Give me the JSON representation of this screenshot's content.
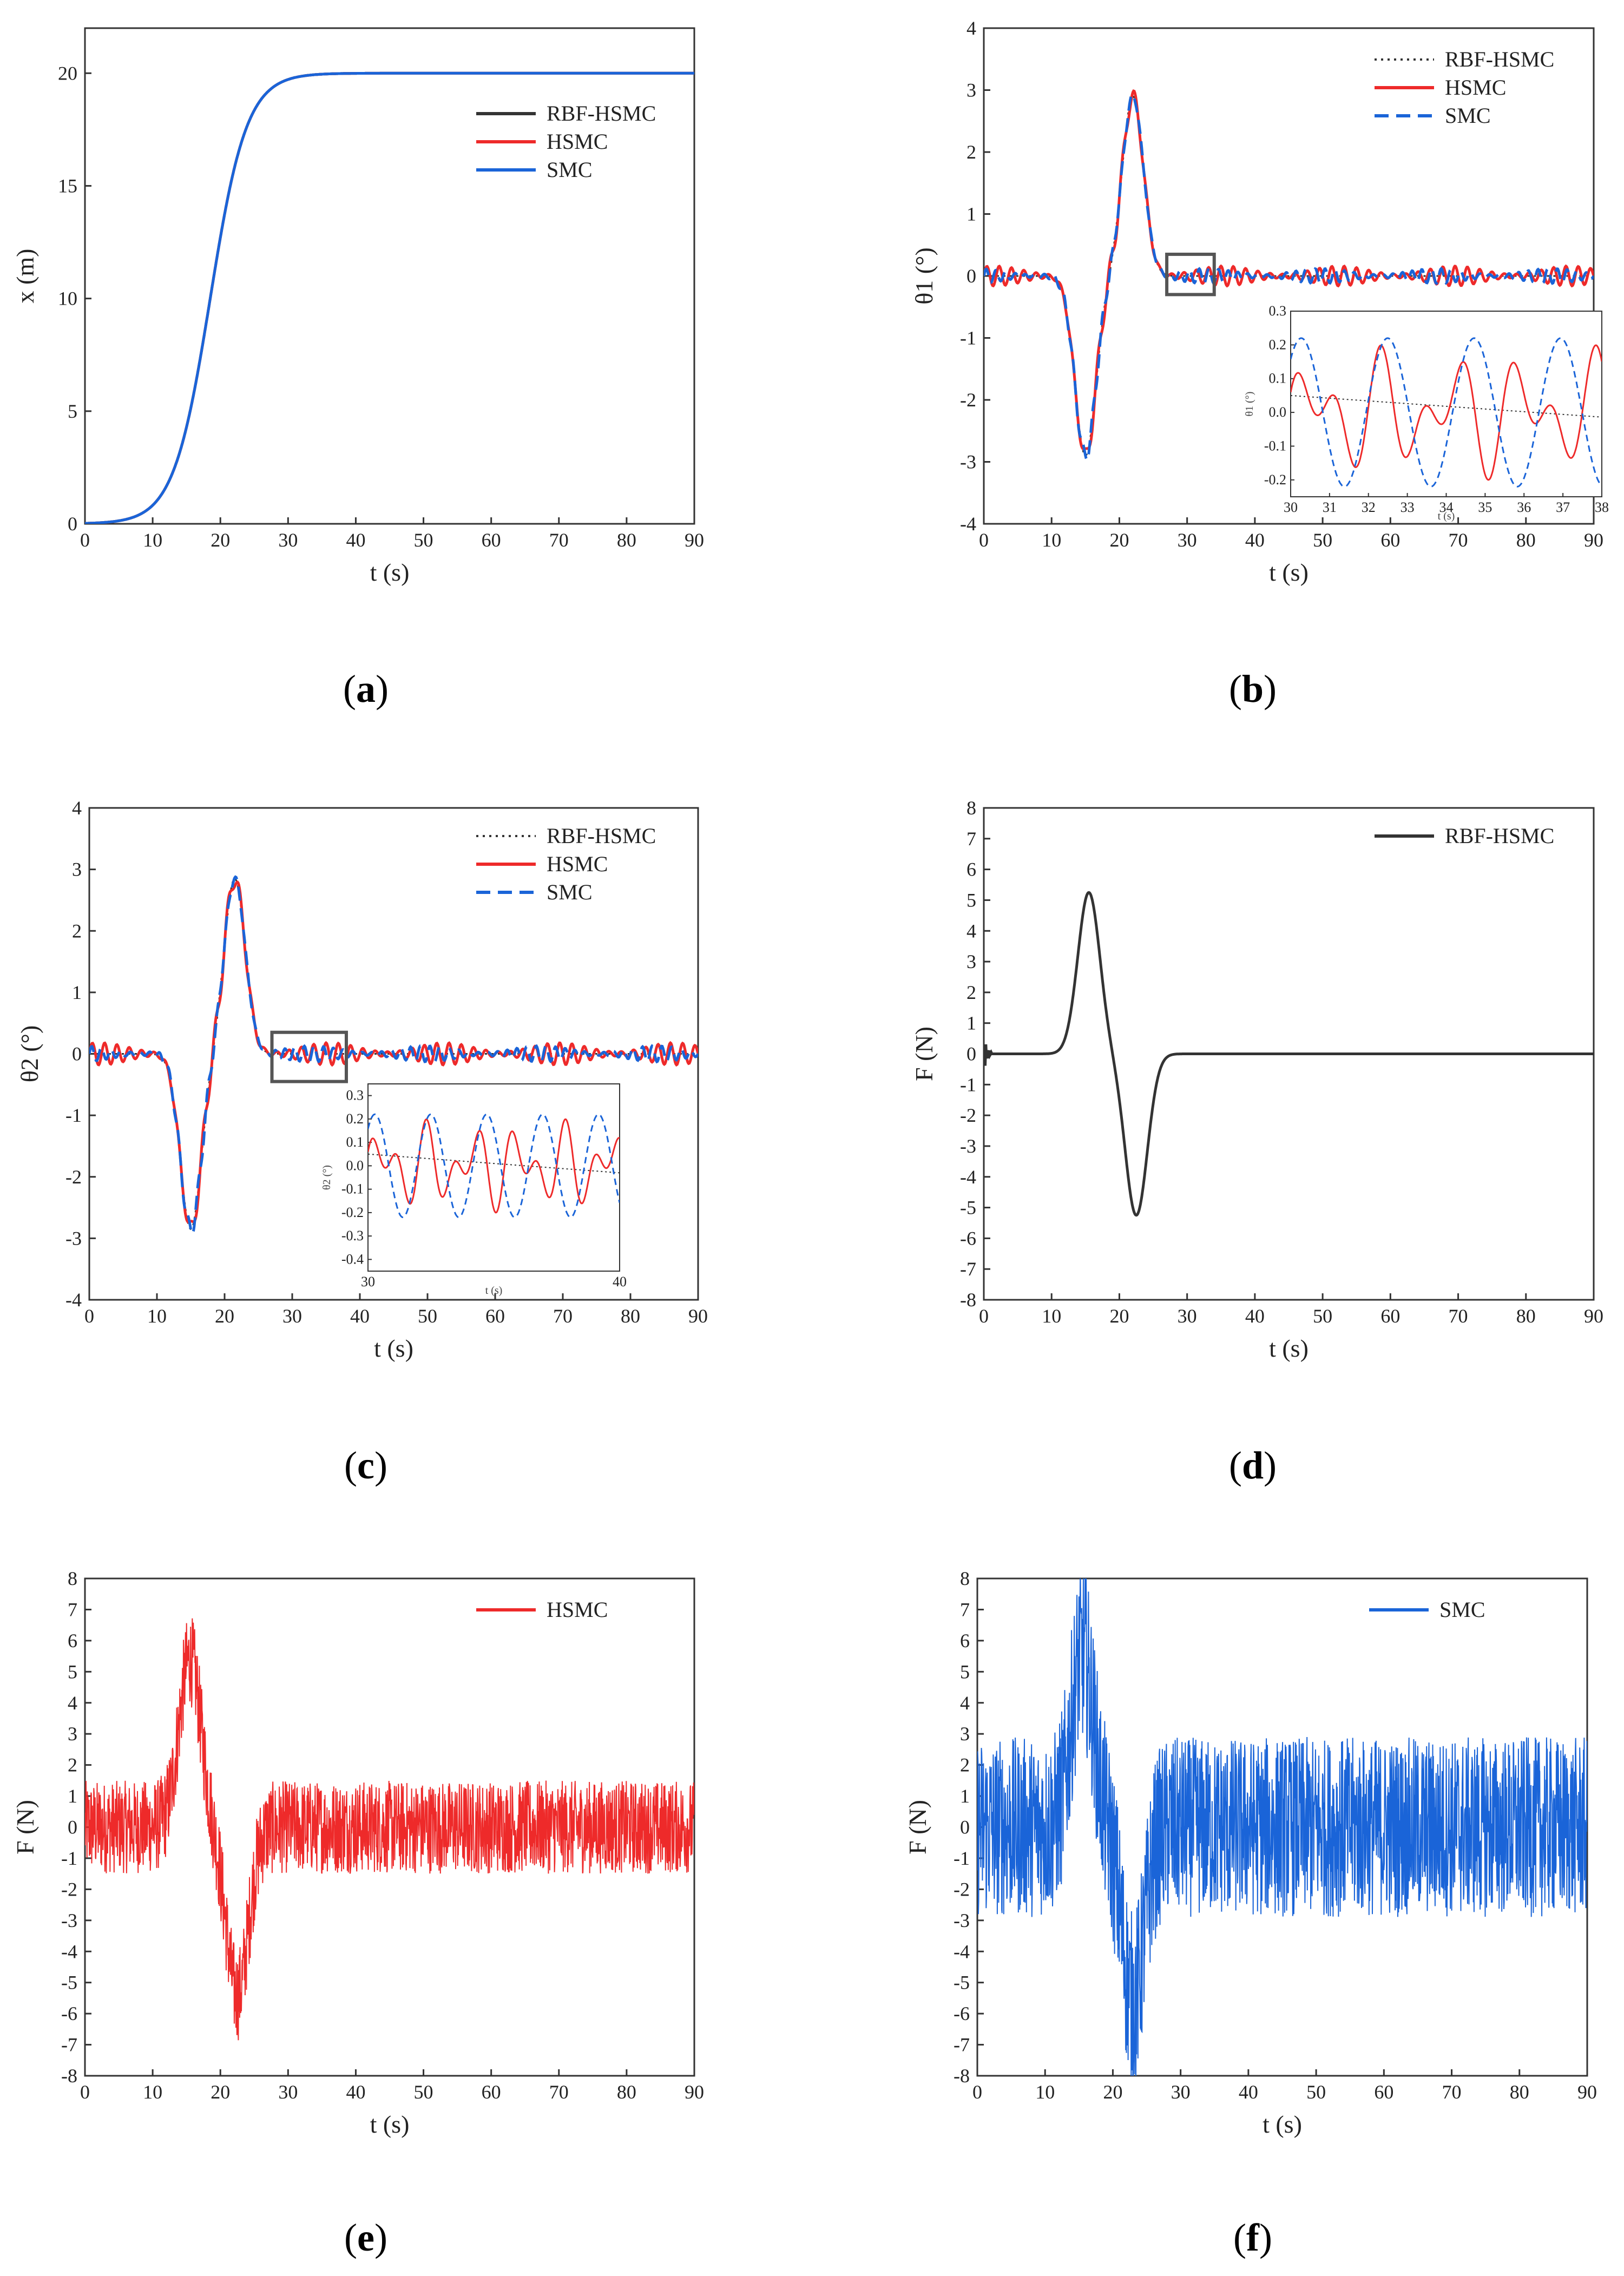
{
  "figure": {
    "panels": [
      "a",
      "b",
      "c",
      "d",
      "e",
      "f"
    ]
  },
  "colors": {
    "rbf": "#333333",
    "hsmc": "#ee2a2a",
    "smc": "#1a64d8",
    "axis": "#333333",
    "box": "#555555"
  },
  "chart_data": [
    {
      "id": "a",
      "caption": "(a)",
      "type": "line",
      "xlabel": "t (s)",
      "ylabel": "x (m)",
      "xlim": [
        0,
        90
      ],
      "ylim": [
        0,
        22
      ],
      "xticks": [
        0,
        10,
        20,
        30,
        40,
        50,
        60,
        70,
        80,
        90
      ],
      "yticks": [
        0,
        5,
        10,
        15,
        20
      ],
      "legend_position": "upper-right",
      "series": [
        {
          "name": "RBF-HSMC",
          "color": "#333333",
          "style": "solid",
          "kind": "step",
          "params": {
            "a": 20,
            "c": 18.5,
            "s": 2.7
          }
        },
        {
          "name": "HSMC",
          "color": "#ee2a2a",
          "style": "solid",
          "kind": "step",
          "params": {
            "a": 20,
            "c": 18.5,
            "s": 2.7
          }
        },
        {
          "name": "SMC",
          "color": "#1a64d8",
          "style": "solid",
          "kind": "step",
          "params": {
            "a": 20,
            "c": 18.5,
            "s": 2.7
          }
        }
      ]
    },
    {
      "id": "b",
      "caption": "(b)",
      "type": "line",
      "xlabel": "t (s)",
      "ylabel": "θ1 (°)",
      "xlim": [
        0,
        90
      ],
      "ylim": [
        -4,
        4
      ],
      "xticks": [
        0,
        10,
        20,
        30,
        40,
        50,
        60,
        70,
        80,
        90
      ],
      "yticks": [
        -4,
        -3,
        -2,
        -1,
        0,
        1,
        2,
        3,
        4
      ],
      "legend_position": "upper-right",
      "zoom_box": {
        "x": [
          27,
          34
        ],
        "y": [
          -0.3,
          0.35
        ]
      },
      "series": [
        {
          "name": "RBF-HSMC",
          "color": "#333333",
          "style": "dotted",
          "kind": "swing",
          "params": {
            "A": 2.9,
            "c1": 15,
            "c2": 22,
            "s": 2.2,
            "osc": 0.0
          }
        },
        {
          "name": "HSMC",
          "color": "#ee2a2a",
          "style": "solid",
          "kind": "swing",
          "params": {
            "A": 2.9,
            "c1": 15,
            "c2": 22,
            "s": 2.2,
            "osc": 0.16,
            "f": 0.55
          }
        },
        {
          "name": "SMC",
          "color": "#1a64d8",
          "style": "dashed",
          "kind": "swing",
          "params": {
            "A": 2.9,
            "c1": 15,
            "c2": 22,
            "s": 2.2,
            "osc": 0.12,
            "f": 0.7
          }
        }
      ],
      "inset": {
        "xlabel": "t (s)",
        "ylabel": "θ1 (°)",
        "xlim": [
          30,
          38
        ],
        "ylim": [
          -0.25,
          0.3
        ],
        "xticks": [
          30,
          31,
          32,
          33,
          34,
          35,
          36,
          37,
          38
        ],
        "yticks": [
          -0.2,
          -0.1,
          0.0,
          0.1,
          0.2,
          0.3
        ],
        "ytick_labels": [
          "-0.2",
          "-0.1",
          "0.0",
          "0.1",
          "0.2",
          "0.3"
        ]
      }
    },
    {
      "id": "c",
      "caption": "(c)",
      "type": "line",
      "xlabel": "t (s)",
      "ylabel": "θ2 (°)",
      "xlim": [
        0,
        90
      ],
      "ylim": [
        -4,
        4
      ],
      "xticks": [
        0,
        10,
        20,
        30,
        40,
        50,
        60,
        70,
        80,
        90
      ],
      "yticks": [
        -4,
        -3,
        -2,
        -1,
        0,
        1,
        2,
        3,
        4
      ],
      "legend_position": "upper-right",
      "zoom_box": {
        "x": [
          27,
          38
        ],
        "y": [
          -0.45,
          0.35
        ]
      },
      "series": [
        {
          "name": "RBF-HSMC",
          "color": "#333333",
          "style": "dotted",
          "kind": "swing",
          "params": {
            "A": 2.85,
            "c1": 15,
            "c2": 21.5,
            "s": 2.2,
            "osc": 0.0
          }
        },
        {
          "name": "HSMC",
          "color": "#ee2a2a",
          "style": "solid",
          "kind": "swing",
          "params": {
            "A": 2.85,
            "c1": 15,
            "c2": 21.5,
            "s": 2.2,
            "osc": 0.18,
            "f": 0.55
          }
        },
        {
          "name": "SMC",
          "color": "#1a64d8",
          "style": "dashed",
          "kind": "swing",
          "params": {
            "A": 2.85,
            "c1": 15,
            "c2": 21.5,
            "s": 2.2,
            "osc": 0.13,
            "f": 0.7
          }
        }
      ],
      "inset": {
        "xlabel": "t (s)",
        "ylabel": "θ2 (°)",
        "xlim": [
          30,
          40
        ],
        "ylim": [
          -0.45,
          0.35
        ],
        "xticks": [
          30,
          40
        ],
        "yticks": [
          -0.4,
          -0.3,
          -0.2,
          -0.1,
          0.0,
          0.1,
          0.2,
          0.3
        ],
        "ytick_labels": [
          "-0.4",
          "-0.3",
          "-0.2",
          "-0.1",
          "0.0",
          "0.1",
          "0.2",
          "0.3"
        ]
      }
    },
    {
      "id": "d",
      "caption": "(d)",
      "type": "line",
      "xlabel": "t (s)",
      "ylabel": "F (N)",
      "xlim": [
        0,
        90
      ],
      "ylim": [
        -8,
        8
      ],
      "xticks": [
        0,
        10,
        20,
        30,
        40,
        50,
        60,
        70,
        80,
        90
      ],
      "yticks": [
        -8,
        -7,
        -6,
        -5,
        -4,
        -3,
        -2,
        -1,
        0,
        1,
        2,
        3,
        4,
        5,
        6,
        7,
        8
      ],
      "legend_position": "upper-right",
      "series": [
        {
          "name": "RBF-HSMC",
          "color": "#333333",
          "style": "solid",
          "kind": "force",
          "params": {
            "A": 5.25,
            "c1": 15.5,
            "c2": 22.5,
            "s": 2.3,
            "noise": 0.0
          }
        }
      ]
    },
    {
      "id": "e",
      "caption": "(e)",
      "type": "line",
      "xlabel": "t (s)",
      "ylabel": "F (N)",
      "xlim": [
        0,
        90
      ],
      "ylim": [
        -8,
        8
      ],
      "xticks": [
        0,
        10,
        20,
        30,
        40,
        50,
        60,
        70,
        80,
        90
      ],
      "yticks": [
        -8,
        -7,
        -6,
        -5,
        -4,
        -3,
        -2,
        -1,
        0,
        1,
        2,
        3,
        4,
        5,
        6,
        7,
        8
      ],
      "legend_position": "upper-right",
      "series": [
        {
          "name": "HSMC",
          "color": "#ee2a2a",
          "style": "solid",
          "kind": "force",
          "params": {
            "A": 5.4,
            "c1": 15.5,
            "c2": 22.5,
            "s": 2.3,
            "noise": 1.5
          }
        }
      ]
    },
    {
      "id": "f",
      "caption": "(f)",
      "type": "line",
      "xlabel": "t (s)",
      "ylabel": "F (N)",
      "xlim": [
        0,
        90
      ],
      "ylim": [
        -8,
        8
      ],
      "xticks": [
        0,
        10,
        20,
        30,
        40,
        50,
        60,
        70,
        80,
        90
      ],
      "yticks": [
        -8,
        -7,
        -6,
        -5,
        -4,
        -3,
        -2,
        -1,
        0,
        1,
        2,
        3,
        4,
        5,
        6,
        7,
        8
      ],
      "legend_position": "upper-right",
      "series": [
        {
          "name": "SMC",
          "color": "#1a64d8",
          "style": "solid",
          "kind": "force",
          "params": {
            "A": 5.6,
            "c1": 15.5,
            "c2": 23,
            "s": 2.3,
            "noise": 2.9
          }
        }
      ]
    }
  ]
}
